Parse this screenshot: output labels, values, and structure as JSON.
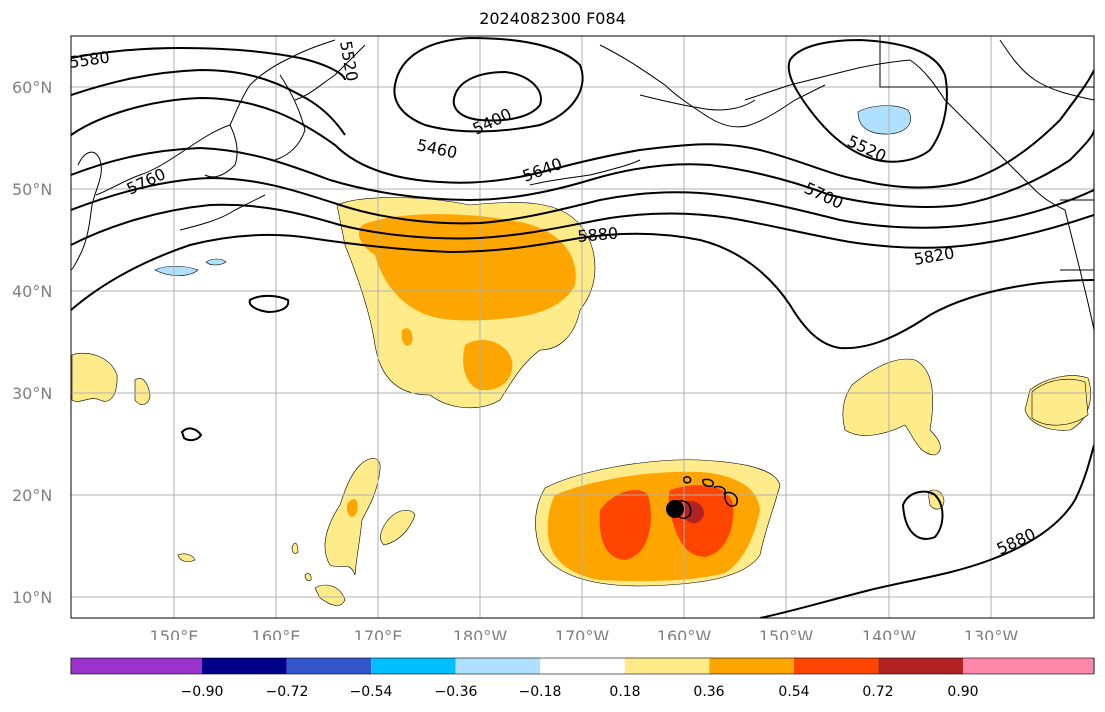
{
  "title": "2024082300 F084",
  "map": {
    "lat_ticks": [
      "60°N",
      "50°N",
      "40°N",
      "30°N",
      "20°N",
      "10°N"
    ],
    "lon_ticks": [
      "150°E",
      "160°E",
      "170°E",
      "180°W",
      "170°W",
      "160°W",
      "150°W",
      "140°W",
      "130°W"
    ],
    "contour_labels": [
      "5580",
      "5520",
      "5400",
      "5460",
      "5640",
      "5760",
      "5880",
      "5700",
      "5520",
      "5820",
      "5880"
    ],
    "gridlines": true
  },
  "colorbar": {
    "colors": [
      "#9933cc",
      "#000088",
      "#3355cc",
      "#00bfff",
      "#b0e0ff",
      "#ffffff",
      "#ffeb8a",
      "#ffa500",
      "#ff4500",
      "#b22222",
      "#ff88aa"
    ],
    "ticks": [
      "−0.90",
      "−0.72",
      "−0.54",
      "−0.36",
      "−0.18",
      "0.18",
      "0.36",
      "0.54",
      "0.72",
      "0.90"
    ]
  }
}
